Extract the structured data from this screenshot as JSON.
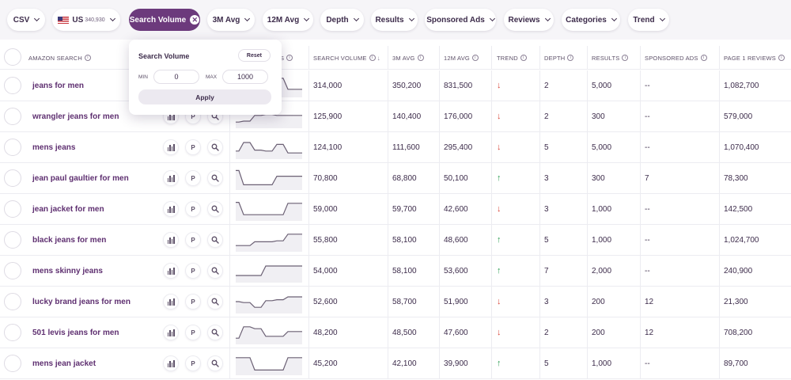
{
  "filters": {
    "csv": "CSV",
    "marketplace": "US",
    "marketplace_count": "340,930",
    "search_volume": "Search Volume",
    "avg3m": "3M Avg",
    "avg12m": "12M Avg",
    "depth": "Depth",
    "results": "Results",
    "sponsored": "Sponsored Ads",
    "reviews": "Reviews",
    "categories": "Categories",
    "trend": "Trend"
  },
  "popover": {
    "title": "Search Volume",
    "reset": "Reset",
    "min_label": "MIN",
    "min_value": "0",
    "max_label": "MAX",
    "max_value": "1000",
    "apply": "Apply"
  },
  "table": {
    "headers": {
      "search": "AMAZON SEARCH",
      "trend_spark": "S",
      "volume": "SEARCH VOLUME",
      "avg3m": "3M AVG",
      "avg12m": "12M AVG",
      "trend": "TREND",
      "depth": "DEPTH",
      "results": "RESULTS",
      "sponsored": "SPONSORED ADS",
      "reviews": "PAGE 1 REVIEWS"
    },
    "rows": [
      {
        "keyword": "jeans for men",
        "volume": "314,000",
        "avg3m": "350,200",
        "avg12m": "831,500",
        "trend": "down",
        "trend_glyph": "↓",
        "depth": "2",
        "results": "5,000",
        "sponsored": "--",
        "reviews": "1,082,700",
        "spark": [
          0.8,
          0.85,
          0.9,
          0.9,
          0.88,
          0.3,
          0.3
        ]
      },
      {
        "keyword": "wrangler jeans for men",
        "volume": "125,900",
        "avg3m": "140,400",
        "avg12m": "176,000",
        "trend": "down",
        "trend_glyph": "↓",
        "depth": "2",
        "results": "300",
        "sponsored": "--",
        "reviews": "579,000",
        "spark": [
          0.2,
          0.25,
          0.55,
          0.6,
          0.55,
          0.55,
          0.55
        ]
      },
      {
        "keyword": "mens jeans",
        "volume": "124,100",
        "avg3m": "111,600",
        "avg12m": "295,400",
        "trend": "down",
        "trend_glyph": "↓",
        "depth": "5",
        "results": "5,000",
        "sponsored": "--",
        "reviews": "1,070,400",
        "spark": [
          0.3,
          0.75,
          0.35,
          0.3,
          0.65,
          0.2,
          0.2
        ]
      },
      {
        "keyword": "jean paul gaultier for men",
        "volume": "70,800",
        "avg3m": "68,800",
        "avg12m": "50,100",
        "trend": "up",
        "trend_glyph": "↑",
        "depth": "3",
        "results": "300",
        "sponsored": "7",
        "reviews": "78,300",
        "spark": [
          0.9,
          0.15,
          0.15,
          0.15,
          0.6,
          0.6,
          0.6
        ]
      },
      {
        "keyword": "jean jacket for men",
        "volume": "59,000",
        "avg3m": "59,700",
        "avg12m": "42,600",
        "trend": "down",
        "trend_glyph": "↓",
        "depth": "3",
        "results": "1,000",
        "sponsored": "--",
        "reviews": "142,500",
        "spark": [
          0.85,
          0.2,
          0.2,
          0.2,
          0.2,
          0.8,
          0.8
        ]
      },
      {
        "keyword": "black jeans for men",
        "volume": "55,800",
        "avg3m": "58,100",
        "avg12m": "48,600",
        "trend": "up",
        "trend_glyph": "↑",
        "depth": "5",
        "results": "1,000",
        "sponsored": "--",
        "reviews": "1,024,700",
        "spark": [
          0.2,
          0.2,
          0.4,
          0.4,
          0.45,
          0.8,
          0.8
        ]
      },
      {
        "keyword": "mens skinny jeans",
        "volume": "54,000",
        "avg3m": "58,100",
        "avg12m": "53,600",
        "trend": "up",
        "trend_glyph": "↑",
        "depth": "7",
        "results": "2,000",
        "sponsored": "--",
        "reviews": "240,900",
        "spark": [
          0.25,
          0.25,
          0.25,
          0.75,
          0.75,
          0.75,
          0.75
        ]
      },
      {
        "keyword": "lucky brand jeans for men",
        "volume": "52,600",
        "avg3m": "58,700",
        "avg12m": "51,900",
        "trend": "down",
        "trend_glyph": "↓",
        "depth": "3",
        "results": "200",
        "sponsored": "12",
        "reviews": "21,300",
        "spark": [
          0.5,
          0.45,
          0.2,
          0.55,
          0.6,
          0.75,
          0.75
        ]
      },
      {
        "keyword": "501 levis jeans for men",
        "volume": "48,200",
        "avg3m": "48,500",
        "avg12m": "47,600",
        "trend": "down",
        "trend_glyph": "↓",
        "depth": "2",
        "results": "200",
        "sponsored": "12",
        "reviews": "708,200",
        "spark": [
          0.2,
          0.8,
          0.7,
          0.3,
          0.3,
          0.55,
          0.55
        ]
      },
      {
        "keyword": "mens jean jacket",
        "volume": "45,200",
        "avg3m": "42,100",
        "avg12m": "39,900",
        "trend": "up",
        "trend_glyph": "↑",
        "depth": "5",
        "results": "1,000",
        "sponsored": "--",
        "reviews": "89,700",
        "spark": [
          0.8,
          0.8,
          0.15,
          0.15,
          0.15,
          0.8,
          0.8
        ]
      }
    ]
  },
  "colors": {
    "accent": "#6c3a7c",
    "trend_up": "#2f9e55",
    "trend_down": "#d9473b",
    "keyword": "#5e2f70"
  },
  "icons": {
    "row_actions": [
      "bar-chart-icon",
      "pinterest-icon",
      "search-icon"
    ],
    "pinterest_glyph": "P"
  }
}
